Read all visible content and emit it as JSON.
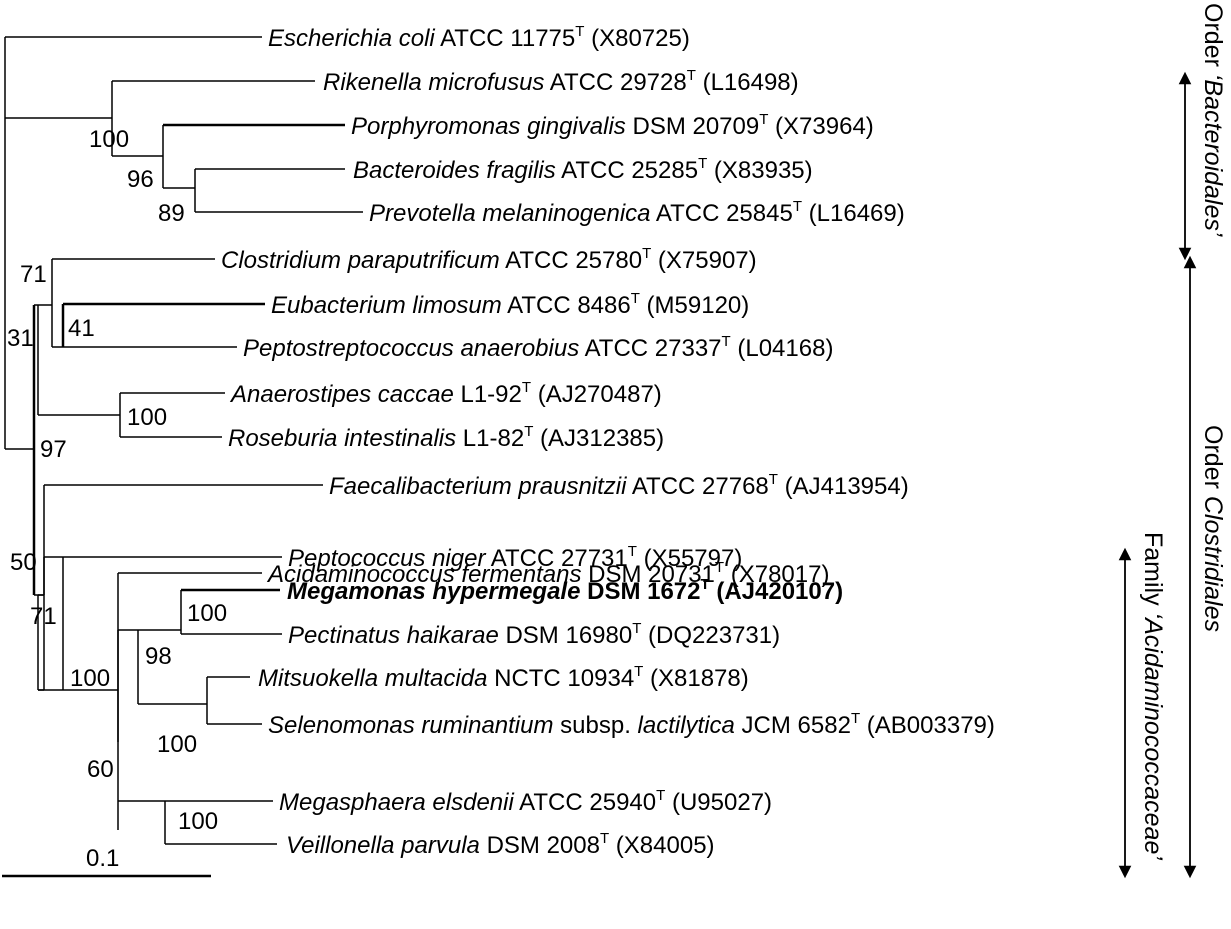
{
  "taxa": [
    {
      "italic": "Escherichia coli",
      "rest": " ATCC 11775",
      "sup": "T",
      "acc": " (X80725)",
      "bold": false
    },
    {
      "italic": "Rikenella microfusus",
      "rest": " ATCC 29728",
      "sup": "T",
      "acc": " (L16498)",
      "bold": false
    },
    {
      "italic": "Porphyromonas gingivalis",
      "rest": " DSM 20709",
      "sup": "T",
      "acc": " (X73964)",
      "bold": false
    },
    {
      "italic": "Bacteroides fragilis",
      "rest": " ATCC 25285",
      "sup": "T",
      "acc": " (X83935)",
      "bold": false
    },
    {
      "italic": "Prevotella melaninogenica",
      "rest": " ATCC 25845",
      "sup": "T",
      "acc": " (L16469)",
      "bold": false
    },
    {
      "italic": "Clostridium paraputrificum",
      "rest": " ATCC 25780",
      "sup": "T",
      "acc": " (X75907)",
      "bold": false
    },
    {
      "italic": "Eubacterium limosum",
      "rest": " ATCC 8486",
      "sup": "T",
      "acc": " (M59120)",
      "bold": false
    },
    {
      "italic": "Peptostreptococcus anaerobius",
      "rest": " ATCC 27337",
      "sup": "T",
      "acc": " (L04168)",
      "bold": false
    },
    {
      "italic": "Anaerostipes caccae",
      "rest": " L1-92",
      "sup": "T",
      "acc": " (AJ270487)",
      "bold": false
    },
    {
      "italic": "Roseburia intestinalis",
      "rest": " L1-82",
      "sup": "T",
      "acc": " (AJ312385)",
      "bold": false
    },
    {
      "italic": "Faecalibacterium prausnitzii",
      "rest": " ATCC 27768",
      "sup": "T",
      "acc": " (AJ413954)",
      "bold": false
    },
    {
      "italic": "Peptococcus niger",
      "rest": " ATCC 27731",
      "sup": "T",
      "acc": " (X55797)",
      "bold": false
    },
    {
      "italic": "Acidaminococcus fermentans",
      "rest": " DSM 20731",
      "sup": "T",
      "acc": " (X78017)",
      "bold": false
    },
    {
      "italic": "Megamonas hypermegale",
      "rest": " DSM 1672",
      "sup": "T",
      "acc": " (AJ420107)",
      "bold": true
    },
    {
      "italic": "Pectinatus haikarae",
      "rest": " DSM 16980",
      "sup": "T",
      "acc": " (DQ223731)",
      "bold": false
    },
    {
      "italic": "Mitsuokella multacida",
      "rest": " NCTC 10934",
      "sup": "T",
      "acc": " (X81878)",
      "bold": false
    },
    {
      "italic": "Selenomonas ruminantium",
      "rest": " subsp. ",
      "italic2": "lactilytica",
      "rest2": " JCM 6582",
      "sup": "T",
      "acc": " (AB003379)",
      "bold": false
    },
    {
      "italic": "Megasphaera elsdenii",
      "rest": " ATCC 25940",
      "sup": "T",
      "acc": " (U95027)",
      "bold": false
    },
    {
      "italic": "Veillonella parvula",
      "rest": " DSM 2008",
      "sup": "T",
      "acc": " (X84005)",
      "bold": false
    }
  ],
  "bootstrap": [
    "100",
    "96",
    "89",
    "71",
    "41",
    "31",
    "100",
    "97",
    "50",
    "71",
    "100",
    "100",
    "98",
    "100",
    "60",
    "100"
  ],
  "scale_bar": {
    "label": "0.1"
  },
  "groups": [
    {
      "prefix": "Order ",
      "name": "‘Bacteroidales’",
      "suffix": ""
    },
    {
      "prefix": "Order ",
      "name": "Clostridiales",
      "suffix": ""
    },
    {
      "prefix": "Family ",
      "name": "‘Acidaminococcaceae’",
      "suffix": ""
    }
  ]
}
